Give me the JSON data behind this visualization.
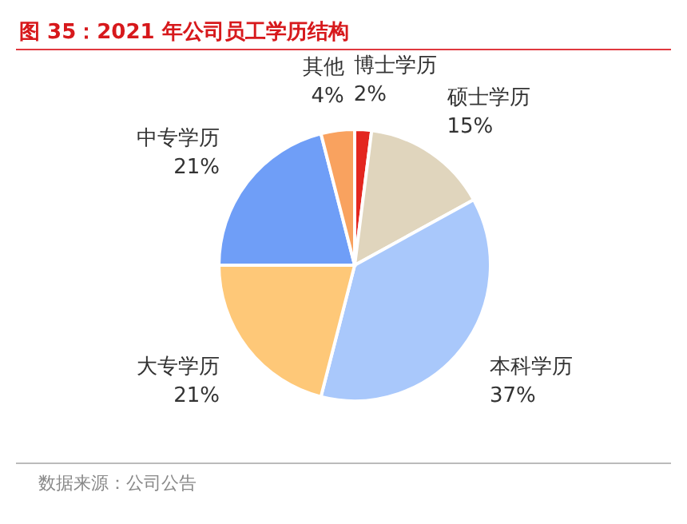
{
  "chart_data": {
    "type": "pie",
    "title": "图 35：2021 年公司员工学历结构",
    "categories": [
      "博士学历",
      "硕士学历",
      "本科学历",
      "大专学历",
      "中专学历",
      "其他"
    ],
    "values": [
      2,
      15,
      37,
      21,
      21,
      4
    ],
    "value_labels": [
      "2%",
      "15%",
      "37%",
      "21%",
      "21%",
      "4%"
    ],
    "colors": [
      "#e3261f",
      "#e0d5bd",
      "#a9c8fb",
      "#fec878",
      "#6f9ef7",
      "#f9a25f"
    ],
    "annotations": [
      "数据来源：公司公告"
    ]
  }
}
